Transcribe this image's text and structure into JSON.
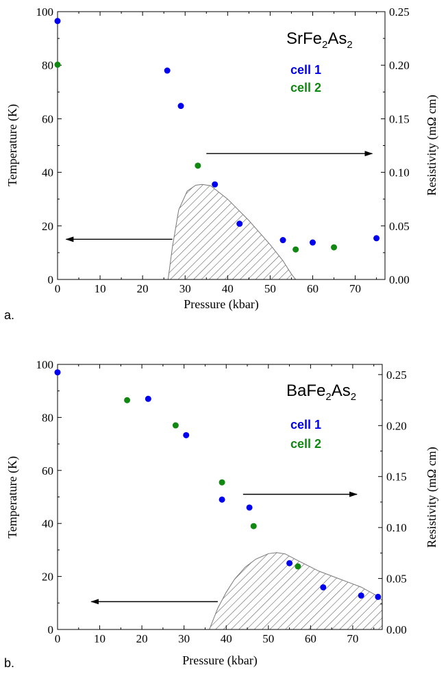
{
  "colors": {
    "cell1": "#0000ee",
    "cell2": "#118811",
    "axis": "#000000"
  },
  "chart_data": [
    {
      "type": "scatter",
      "panel_label": "a.",
      "title": {
        "main": "SrFe",
        "sub1": "2",
        "mid": "As",
        "sub2": "2"
      },
      "xlabel": "Pressure (kbar)",
      "ylabel": "Temperature (K)",
      "y2label": "Resistivity (mΩ cm)",
      "xlim": [
        0,
        77
      ],
      "ylim": [
        0,
        100
      ],
      "y2lim": [
        0,
        0.25
      ],
      "xticks": [
        "0",
        "10",
        "20",
        "30",
        "40",
        "50",
        "60",
        "70"
      ],
      "yticks": [
        "0",
        "20",
        "40",
        "60",
        "80",
        "100"
      ],
      "y2ticks": [
        "0.00",
        "0.05",
        "0.10",
        "0.15",
        "0.20",
        "0.25"
      ],
      "series": [
        {
          "name": "cell 1",
          "color": "#0000ee",
          "points": [
            [
              0,
              96.5
            ],
            [
              25.8,
              78
            ],
            [
              29,
              64.8
            ],
            [
              37,
              35.5
            ],
            [
              42.8,
              20.8
            ],
            [
              53,
              14.7
            ],
            [
              60,
              13.8
            ],
            [
              75,
              15.4
            ]
          ]
        },
        {
          "name": "cell 2",
          "color": "#118811",
          "points": [
            [
              0,
              80.2
            ],
            [
              33,
              42.5
            ],
            [
              56,
              11.2
            ],
            [
              65,
              12
            ]
          ]
        }
      ],
      "sc_dome": [
        [
          26,
          0
        ],
        [
          27,
          12
        ],
        [
          28.5,
          26
        ],
        [
          30.5,
          33
        ],
        [
          32.5,
          35.2
        ],
        [
          34,
          35.5
        ],
        [
          36,
          35
        ],
        [
          40,
          30
        ],
        [
          45,
          22
        ],
        [
          50,
          13
        ],
        [
          53,
          7
        ],
        [
          55,
          2
        ],
        [
          56,
          0
        ]
      ],
      "arrows": [
        {
          "from": [
            35,
            47
          ],
          "to": [
            74,
            47
          ],
          "points_to": "right-axis"
        },
        {
          "from": [
            27,
            15
          ],
          "to": [
            2,
            15
          ],
          "points_to": "left-axis"
        }
      ]
    },
    {
      "type": "scatter",
      "panel_label": "b.",
      "title": {
        "main": "BaFe",
        "sub1": "2",
        "mid": "As",
        "sub2": "2"
      },
      "xlabel": "Pressure (kbar)",
      "ylabel": "Temperature (K)",
      "y2label": "Resistivity (mΩ cm)",
      "xlim": [
        0,
        77
      ],
      "ylim": [
        0,
        100
      ],
      "y2lim": [
        0,
        0.26
      ],
      "xticks": [
        "0",
        "10",
        "20",
        "30",
        "40",
        "50",
        "60",
        "70"
      ],
      "yticks": [
        "0",
        "20",
        "40",
        "60",
        "80",
        "100"
      ],
      "y2ticks": [
        "0.00",
        "0.05",
        "0.10",
        "0.15",
        "0.20",
        "0.25"
      ],
      "series": [
        {
          "name": "cell 1",
          "color": "#0000ee",
          "points": [
            [
              0,
              97
            ],
            [
              21.5,
              87
            ],
            [
              30.5,
              73.3
            ],
            [
              39,
              49
            ],
            [
              45.5,
              46
            ],
            [
              55,
              25
            ],
            [
              63,
              15.9
            ],
            [
              72,
              12.8
            ],
            [
              76,
              12.3
            ]
          ]
        },
        {
          "name": "cell 2",
          "color": "#118811",
          "points": [
            [
              16.5,
              86.5
            ],
            [
              28,
              77
            ],
            [
              39,
              55.5
            ],
            [
              46.5,
              39
            ],
            [
              57,
              23.8
            ]
          ]
        }
      ],
      "sc_dome": [
        [
          36,
          0
        ],
        [
          38,
          8
        ],
        [
          40,
          14
        ],
        [
          42,
          19
        ],
        [
          44.5,
          23.5
        ],
        [
          47,
          26.5
        ],
        [
          50,
          28.6
        ],
        [
          52,
          29
        ],
        [
          54,
          28.5
        ],
        [
          57,
          26
        ],
        [
          62,
          22
        ],
        [
          67,
          19
        ],
        [
          72,
          16
        ],
        [
          76,
          12.5
        ],
        [
          77,
          11
        ],
        [
          77,
          0
        ]
      ],
      "arrows": [
        {
          "from": [
            44,
            51
          ],
          "to": [
            71,
            51
          ],
          "points_to": "right-axis"
        },
        {
          "from": [
            38,
            10.5
          ],
          "to": [
            8,
            10.5
          ],
          "points_to": "left-axis"
        }
      ]
    }
  ]
}
